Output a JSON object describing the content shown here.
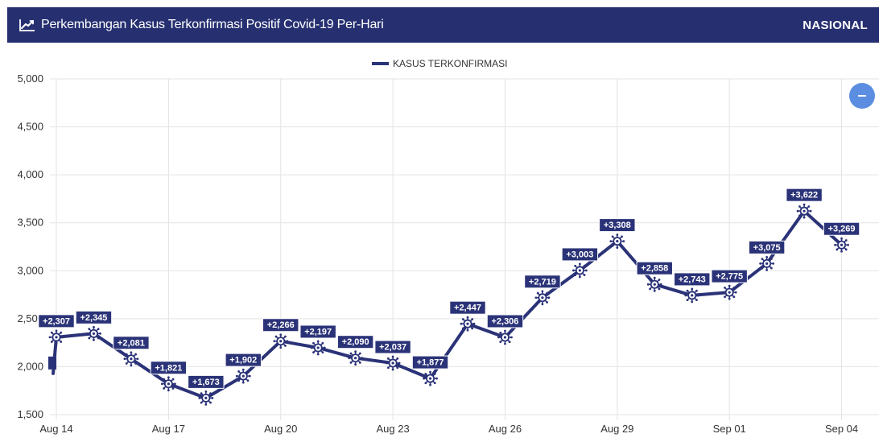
{
  "header": {
    "title": "Perkembangan Kasus Terkonfirmasi Positif Covid-19 Per-Hari",
    "region": "NASIONAL",
    "icon": "line-chart-icon",
    "background": "#263071"
  },
  "legend": {
    "label": "KASUS TERKONFIRMASI",
    "color": "#2b3378"
  },
  "zoom_button": {
    "icon": "minus-icon",
    "color": "#5b8ee0"
  },
  "chart_data": {
    "type": "line",
    "title": "",
    "xlabel": "",
    "ylabel": "",
    "ylim": [
      1500,
      5000
    ],
    "yticks": [
      "1,500",
      "2,000",
      "2,500",
      "3,000",
      "3,500",
      "4,000",
      "4,500",
      "5,000"
    ],
    "ytick_values": [
      1500,
      2000,
      2500,
      3000,
      3500,
      4000,
      4500,
      5000
    ],
    "xlim": [
      "Aug 14",
      "Sep 05"
    ],
    "xtick_dates": [
      "Aug 14",
      "Aug 17",
      "Aug 20",
      "Aug 23",
      "Aug 26",
      "Aug 29",
      "Sep 01",
      "Sep 04"
    ],
    "xticks": [
      "Aug 14",
      "Aug 17",
      "Aug 20",
      "Aug 23",
      "Aug 26",
      "Aug 29",
      "Sep 01",
      "Sep 04"
    ],
    "grid": true,
    "legend_position": "top-center",
    "series": [
      {
        "name": "KASUS TERKONFIRMASI",
        "color": "#2b3378",
        "dates": [
          "Aug 14",
          "Aug 15",
          "Aug 16",
          "Aug 17",
          "Aug 18",
          "Aug 19",
          "Aug 20",
          "Aug 21",
          "Aug 22",
          "Aug 23",
          "Aug 24",
          "Aug 25",
          "Aug 26",
          "Aug 27",
          "Aug 28",
          "Aug 29",
          "Aug 30",
          "Aug 31",
          "Sep 01",
          "Sep 02",
          "Sep 03",
          "Sep 04"
        ],
        "values": [
          2307,
          2345,
          2081,
          1821,
          1673,
          1902,
          2266,
          2197,
          2090,
          2037,
          1877,
          2447,
          2306,
          2719,
          3003,
          3308,
          2858,
          2743,
          2775,
          3075,
          3622,
          3269
        ],
        "labels": [
          "+2,307",
          "+2,345",
          "+2,081",
          "+1,821",
          "+1,673",
          "+1,902",
          "+2,266",
          "+2,197",
          "+2,090",
          "+2,037",
          "+1,877",
          "+2,447",
          "+2,306",
          "+2,719",
          "+3,003",
          "+3,308",
          "+2,858",
          "+2,743",
          "+2,775",
          "+3,075",
          "+3,622",
          "+3,269"
        ]
      }
    ]
  }
}
